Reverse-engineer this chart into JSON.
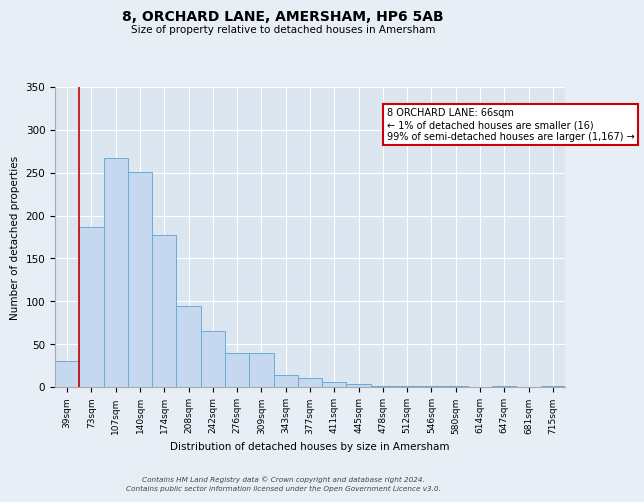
{
  "title": "8, ORCHARD LANE, AMERSHAM, HP6 5AB",
  "subtitle": "Size of property relative to detached houses in Amersham",
  "xlabel": "Distribution of detached houses by size in Amersham",
  "ylabel": "Number of detached properties",
  "bins": [
    "39sqm",
    "73sqm",
    "107sqm",
    "140sqm",
    "174sqm",
    "208sqm",
    "242sqm",
    "276sqm",
    "309sqm",
    "343sqm",
    "377sqm",
    "411sqm",
    "445sqm",
    "478sqm",
    "512sqm",
    "546sqm",
    "580sqm",
    "614sqm",
    "647sqm",
    "681sqm",
    "715sqm"
  ],
  "values": [
    30,
    187,
    267,
    251,
    177,
    95,
    65,
    40,
    40,
    14,
    10,
    6,
    4,
    1,
    1,
    1,
    1,
    0,
    1,
    0,
    1
  ],
  "bar_color": "#c5d8ef",
  "bar_edge_color": "#6aaad4",
  "vline_color": "#cc0000",
  "annotation_text": "8 ORCHARD LANE: 66sqm\n← 1% of detached houses are smaller (16)\n99% of semi-detached houses are larger (1,167) →",
  "annotation_box_color": "#ffffff",
  "annotation_box_edge": "#cc0000",
  "ylim": [
    0,
    350
  ],
  "yticks": [
    0,
    50,
    100,
    150,
    200,
    250,
    300,
    350
  ],
  "footer_line1": "Contains HM Land Registry data © Crown copyright and database right 2024.",
  "footer_line2": "Contains public sector information licensed under the Open Government Licence v3.0.",
  "bg_color": "#e8eef5",
  "plot_bg_color": "#dce6f0"
}
